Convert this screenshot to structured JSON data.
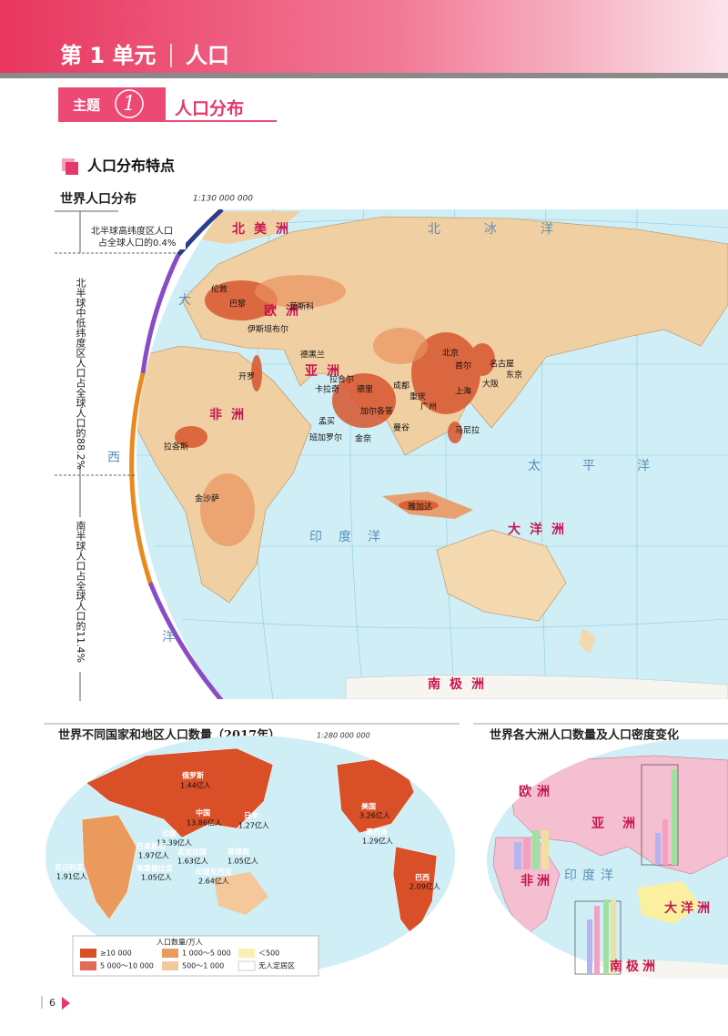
{
  "header": {
    "unit": "第 1 单元",
    "topic": "人口"
  },
  "theme": {
    "label": "主题",
    "number": "1",
    "title": "人口分布"
  },
  "section": {
    "title": "人口分布特点"
  },
  "map_main": {
    "title": "世界人口分布",
    "scale": "1:130 000 000",
    "notes": {
      "north_high": [
        "北半球高纬度区人口",
        "占全球人口的0.4%"
      ],
      "north_mid": "北半球中低纬度区人口占全球人口的88.2%",
      "south": "南半球人口占全球人口的11.4%"
    },
    "regions": [
      "北美洲",
      "欧洲",
      "亚洲",
      "非洲",
      "大洋洲",
      "南极洲",
      "北冰洋",
      "太平洋",
      "印度洋",
      "大",
      "西",
      "洋"
    ],
    "cities": [
      "伦敦",
      "巴黎",
      "莫斯科",
      "伊斯坦布尔",
      "开罗",
      "德黑兰",
      "拉合尔",
      "卡拉奇",
      "德里",
      "加尔各答",
      "孟买",
      "班加罗尔",
      "金奈",
      "成都",
      "重庆",
      "广州",
      "北京",
      "首尔",
      "上海",
      "名古屋",
      "东京",
      "大阪",
      "曼谷",
      "马尼拉",
      "雅加达",
      "拉各斯",
      "金沙萨"
    ]
  },
  "map_countries": {
    "title": "世界不同国家和地区人口数量（2017年）",
    "scale": "1:280 000 000",
    "countries": [
      {
        "name": "俄罗斯",
        "population": "1.44亿人"
      },
      {
        "name": "中国",
        "population": "13.86亿人"
      },
      {
        "name": "日本",
        "population": "1.27亿人"
      },
      {
        "name": "印度",
        "population": "13.39亿人"
      },
      {
        "name": "巴基斯坦",
        "population": "1.97亿人"
      },
      {
        "name": "孟加拉国",
        "population": "1.63亿人"
      },
      {
        "name": "菲律宾",
        "population": "1.05亿人"
      },
      {
        "name": "尼日利亚",
        "population": "1.91亿人"
      },
      {
        "name": "埃塞俄比亚",
        "population": "1.05亿人"
      },
      {
        "name": "印度尼西亚",
        "population": "2.64亿人"
      },
      {
        "name": "美国",
        "population": "3.26亿人"
      },
      {
        "name": "墨西哥",
        "population": "1.29亿人"
      },
      {
        "name": "巴西",
        "population": "2.09亿人"
      }
    ],
    "legend": {
      "title": "人口数量/万人",
      "items": [
        "≥10 000",
        "1 000～5 000",
        "＜500",
        "5 000～10 000",
        "500～1 000",
        "无人定居区"
      ]
    }
  },
  "map_continents": {
    "title": "世界各大洲人口数量及人口密度变化",
    "labels": [
      "欧洲",
      "亚洲",
      "非洲",
      "大洋洲",
      "南极洲",
      "印度洋"
    ]
  },
  "footer": {
    "page": "6"
  }
}
